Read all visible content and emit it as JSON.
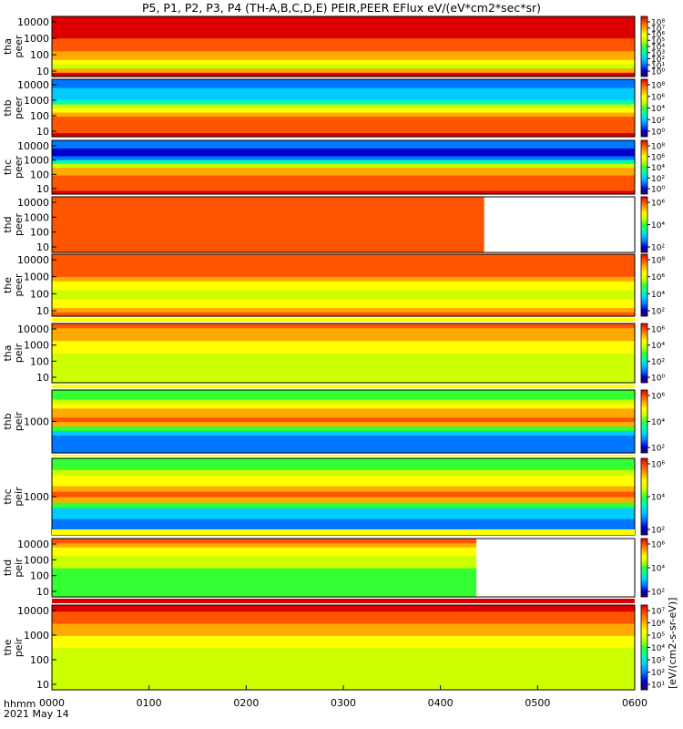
{
  "title": "P5, P1, P2, P3, P4 (TH-A,B,C,D,E) PEIR,PEER EFlux eV/(eV*cm2*sec*sr)",
  "footer": {
    "time_label": "hhmm",
    "date_label": "2021 May 14"
  },
  "colorbar_unit_label": "[eV/(cm2-s-sr-eV)]",
  "colors": {
    "palette": [
      "#2b0066",
      "#0000cc",
      "#0077ff",
      "#00ccff",
      "#00ffaa",
      "#33ff33",
      "#ccff00",
      "#ffff00",
      "#ffaa00",
      "#ff5500",
      "#dd0000"
    ]
  },
  "chart_data": {
    "type": "heatmap",
    "x_ticks": [
      "0000",
      "0100",
      "0200",
      "0300",
      "0400",
      "0500",
      "0600"
    ],
    "xlim": [
      0,
      600
    ],
    "panels": [
      {
        "id": "tha-peer",
        "ylabel": [
          "tha",
          "peer"
        ],
        "yscale": "log",
        "yticks": [
          "10000",
          "1000",
          "100",
          "10"
        ],
        "cbar_ticks": [
          "10⁸",
          "10⁷",
          "10⁶",
          "10⁵",
          "10⁴",
          "10³",
          "10²",
          "10¹",
          "10⁰"
        ],
        "data_end": 600
      },
      {
        "id": "thb-peer",
        "ylabel": [
          "thb",
          "peer"
        ],
        "yscale": "log",
        "yticks": [
          "10000",
          "1000",
          "100",
          "10"
        ],
        "cbar_ticks": [
          "10⁸",
          "10⁶",
          "10⁴",
          "10²",
          "10⁰"
        ],
        "data_end": 600
      },
      {
        "id": "thc-peer",
        "ylabel": [
          "thc",
          "peer"
        ],
        "yscale": "log",
        "yticks": [
          "10000",
          "1000",
          "100",
          "10"
        ],
        "cbar_ticks": [
          "10⁸",
          "10⁶",
          "10⁴",
          "10²",
          "10⁰"
        ],
        "data_end": 600
      },
      {
        "id": "thd-peer",
        "ylabel": [
          "thd",
          "peer"
        ],
        "yscale": "log",
        "yticks": [
          "10000",
          "1000",
          "100",
          "10"
        ],
        "cbar_ticks": [
          "10⁶",
          "10⁴",
          "10²"
        ],
        "data_end": 445
      },
      {
        "id": "the-peer",
        "ylabel": [
          "the",
          "peer"
        ],
        "yscale": "log",
        "yticks": [
          "10000",
          "1000",
          "100",
          "10"
        ],
        "cbar_ticks": [
          "10⁸",
          "10⁶",
          "10⁴",
          "10²"
        ],
        "data_end": 600
      },
      {
        "id": "tha-peir",
        "ylabel": [
          "tha",
          "peir"
        ],
        "yscale": "log",
        "yticks": [
          "10000",
          "1000",
          "100",
          "10"
        ],
        "cbar_ticks": [
          "10⁶",
          "10⁴",
          "10²",
          "10⁰"
        ],
        "data_end": 600
      },
      {
        "id": "thb-peir",
        "ylabel": [
          "thb",
          "peir"
        ],
        "yscale": "log",
        "yticks": [
          "1000"
        ],
        "cbar_ticks": [
          "10⁶",
          "10⁴",
          "10²"
        ],
        "data_end": 600
      },
      {
        "id": "thc-peir",
        "ylabel": [
          "thc",
          "peir"
        ],
        "yscale": "log",
        "yticks": [
          "1000"
        ],
        "cbar_ticks": [
          "10⁶",
          "10⁴",
          "10²"
        ],
        "data_end": 600
      },
      {
        "id": "thd-peir",
        "ylabel": [
          "thd",
          "peir"
        ],
        "yscale": "log",
        "yticks": [
          "10000",
          "1000",
          "100",
          "10"
        ],
        "cbar_ticks": [
          "10⁶",
          "10⁴",
          "10²"
        ],
        "data_end": 437
      },
      {
        "id": "the-peir",
        "ylabel": [
          "the",
          "peir"
        ],
        "yscale": "log",
        "yticks": [
          "10000",
          "1000",
          "100",
          "10"
        ],
        "cbar_ticks": [
          "10⁷",
          "10⁶",
          "10⁵",
          "10⁴",
          "10³",
          "10²",
          "10¹"
        ],
        "data_end": 600
      }
    ]
  }
}
